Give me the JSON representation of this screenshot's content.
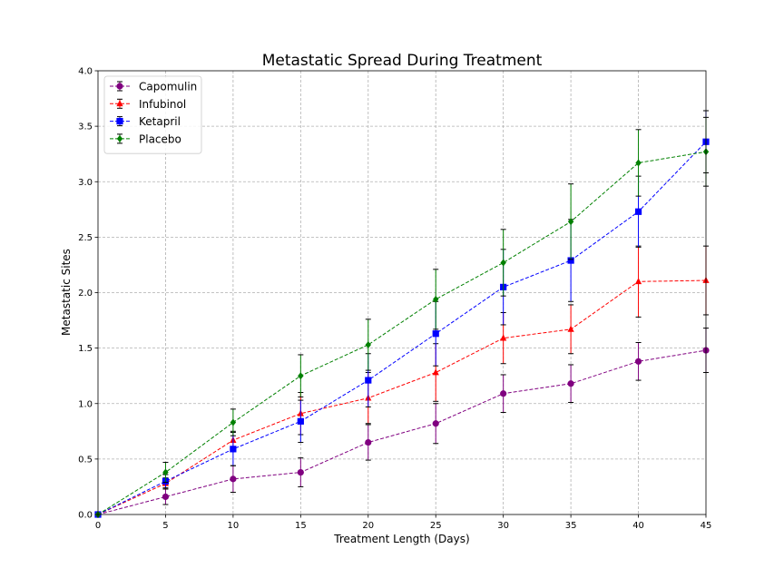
{
  "chart_data": {
    "type": "line",
    "title": "Metastatic Spread During Treatment",
    "xlabel": "Treatment Length (Days)",
    "ylabel": "Metastatic Sites",
    "xlim": [
      0,
      45
    ],
    "ylim": [
      0,
      4.0
    ],
    "xticks": [
      "0",
      "5",
      "10",
      "15",
      "20",
      "25",
      "30",
      "35",
      "40",
      "45"
    ],
    "yticks": [
      "0.0",
      "0.5",
      "1.0",
      "1.5",
      "2.0",
      "2.5",
      "3.0",
      "3.5",
      "4.0"
    ],
    "grid": true,
    "legend_position": "top-left",
    "x": [
      0,
      5,
      10,
      15,
      20,
      25,
      30,
      35,
      40,
      45
    ],
    "series": [
      {
        "name": "Capomulin",
        "color": "#800080",
        "marker": "circle",
        "values": [
          0.0,
          0.16,
          0.32,
          0.38,
          0.65,
          0.82,
          1.09,
          1.18,
          1.38,
          1.48
        ],
        "errors": [
          0.0,
          0.07,
          0.12,
          0.13,
          0.16,
          0.18,
          0.17,
          0.17,
          0.17,
          0.2
        ]
      },
      {
        "name": "Infubinol",
        "color": "#ff0000",
        "marker": "triangle",
        "values": [
          0.0,
          0.28,
          0.67,
          0.91,
          1.05,
          1.28,
          1.59,
          1.67,
          2.1,
          2.11
        ],
        "errors": [
          0.0,
          0.05,
          0.08,
          0.19,
          0.23,
          0.26,
          0.23,
          0.22,
          0.32,
          0.31
        ]
      },
      {
        "name": "Ketapril",
        "color": "#0000ff",
        "marker": "square",
        "values": [
          0.0,
          0.3,
          0.59,
          0.84,
          1.21,
          1.63,
          2.05,
          2.29,
          2.73,
          3.36
        ],
        "errors": [
          0.0,
          0.06,
          0.15,
          0.19,
          0.24,
          0.29,
          0.34,
          0.37,
          0.32,
          0.28
        ]
      },
      {
        "name": "Placebo",
        "color": "#008000",
        "marker": "diamond",
        "values": [
          0.0,
          0.38,
          0.83,
          1.25,
          1.53,
          1.94,
          2.27,
          2.64,
          3.17,
          3.27
        ],
        "errors": [
          0.0,
          0.09,
          0.12,
          0.19,
          0.23,
          0.27,
          0.3,
          0.34,
          0.3,
          0.31
        ]
      }
    ]
  }
}
